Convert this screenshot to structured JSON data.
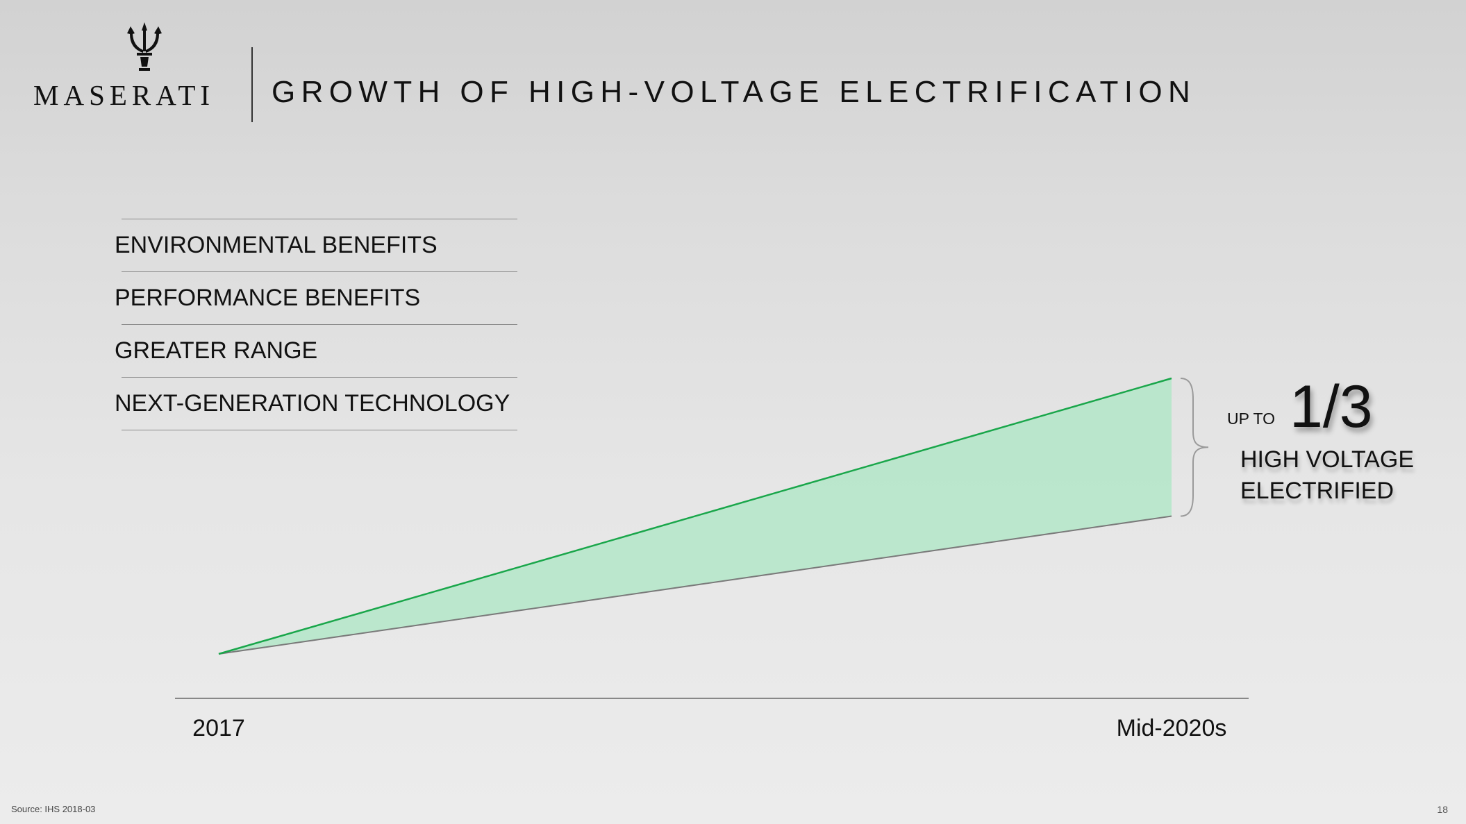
{
  "brand": {
    "name": "MASERATI",
    "emblem": "trident-icon"
  },
  "slide": {
    "title": "GROWTH OF HIGH-VOLTAGE ELECTRIFICATION",
    "page_number": "18",
    "source": "Source: IHS 2018-03"
  },
  "benefits": [
    "ENVIRONMENTAL BENEFITS",
    "PERFORMANCE BENEFITS",
    "GREATER RANGE",
    "NEXT-GENERATION TECHNOLOGY"
  ],
  "callout": {
    "prefix": "UP TO",
    "value": "1/3",
    "line1": "HIGH VOLTAGE",
    "line2": "ELECTRIFIED"
  },
  "colors": {
    "upper_line": "#19a64a",
    "lower_line": "#7a7a7a",
    "fill": "#b3e6c8",
    "axis": "#888888"
  },
  "chart_data": {
    "type": "area",
    "x": [
      "2017",
      "Mid-2020s"
    ],
    "series": [
      {
        "values": [
          0,
          1.0
        ]
      },
      {
        "values": [
          0,
          0.5
        ]
      }
    ],
    "grid": false
  }
}
